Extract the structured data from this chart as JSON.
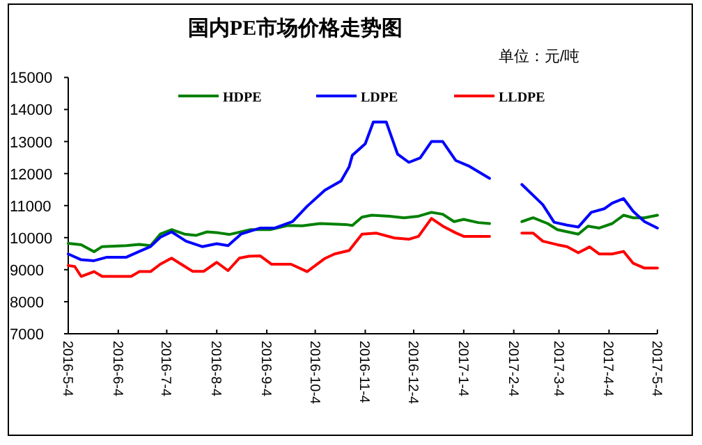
{
  "chart_data": {
    "type": "line",
    "title": "国内PE市场价格走势图",
    "subtitle": "单位：元/吨",
    "xlim": [
      "2016-05-04",
      "2017-05-04"
    ],
    "ylim": [
      7000,
      15000
    ],
    "xticks": [
      {
        "value": "2016-05-04",
        "label": "2016-5-4"
      },
      {
        "value": "2016-06-04",
        "label": "2016-6-4"
      },
      {
        "value": "2016-07-04",
        "label": "2016-7-4"
      },
      {
        "value": "2016-08-04",
        "label": "2016-8-4"
      },
      {
        "value": "2016-09-04",
        "label": "2016-9-4"
      },
      {
        "value": "2016-10-04",
        "label": "2016-10-4"
      },
      {
        "value": "2016-11-04",
        "label": "2016-11-4"
      },
      {
        "value": "2016-12-04",
        "label": "2016-12-4"
      },
      {
        "value": "2017-01-04",
        "label": "2017-1-4"
      },
      {
        "value": "2017-02-04",
        "label": "2017-2-4"
      },
      {
        "value": "2017-03-04",
        "label": "2017-3-4"
      },
      {
        "value": "2017-04-04",
        "label": "2017-4-4"
      },
      {
        "value": "2017-05-04",
        "label": "2017-5-4"
      }
    ],
    "yticks": [
      7000,
      8000,
      9000,
      10000,
      11000,
      12000,
      13000,
      14000,
      15000
    ],
    "legend": "top",
    "series": [
      {
        "name": "HDPE",
        "color": "#008000",
        "x": [
          "2016-05-04",
          "2016-05-12",
          "2016-05-20",
          "2016-05-25",
          "2016-06-09",
          "2016-06-17",
          "2016-06-24",
          "2016-06-30",
          "2016-07-07",
          "2016-07-15",
          "2016-07-22",
          "2016-07-29",
          "2016-08-05",
          "2016-08-12",
          "2016-08-25",
          "2016-09-06",
          "2016-09-17",
          "2016-09-26",
          "2016-10-07",
          "2016-10-23",
          "2016-10-27",
          "2016-11-02",
          "2016-11-08",
          "2016-11-19",
          "2016-11-28",
          "2016-12-07",
          "2016-12-15",
          "2016-12-22",
          "2016-12-29",
          "2017-01-04",
          "2017-01-13",
          "2017-01-20",
          "2017-01-30",
          "2017-02-09",
          "2017-02-16",
          "2017-02-25",
          "2017-03-03",
          "2017-03-16",
          "2017-03-22",
          "2017-03-29",
          "2017-04-06",
          "2017-04-13",
          "2017-04-19",
          "2017-04-26",
          "2017-05-04"
        ],
        "values": [
          9820,
          9780,
          9560,
          9720,
          9750,
          9790,
          9750,
          10110,
          10250,
          10110,
          10070,
          10180,
          10150,
          10100,
          10250,
          10250,
          10380,
          10370,
          10440,
          10410,
          10380,
          10640,
          10700,
          10670,
          10620,
          10670,
          10790,
          10730,
          10500,
          10570,
          10470,
          10440,
          null,
          10500,
          10620,
          10440,
          10250,
          10110,
          10360,
          10300,
          10440,
          10700,
          10620,
          10620,
          10700
        ]
      },
      {
        "name": "LDPE",
        "color": "#0000ff",
        "x": [
          "2016-05-04",
          "2016-05-12",
          "2016-05-20",
          "2016-05-28",
          "2016-06-09",
          "2016-06-17",
          "2016-06-24",
          "2016-06-30",
          "2016-07-07",
          "2016-07-16",
          "2016-07-26",
          "2016-08-04",
          "2016-08-11",
          "2016-08-19",
          "2016-08-31",
          "2016-09-09",
          "2016-09-20",
          "2016-09-29",
          "2016-10-10",
          "2016-10-20",
          "2016-10-25",
          "2016-10-27",
          "2016-11-04",
          "2016-11-09",
          "2016-11-17",
          "2016-11-24",
          "2016-12-01",
          "2016-12-08",
          "2016-12-15",
          "2016-12-22",
          "2016-12-30",
          "2017-01-07",
          "2017-01-20",
          "2017-01-30",
          "2017-02-09",
          "2017-02-22",
          "2017-03-01",
          "2017-03-09",
          "2017-03-16",
          "2017-03-24",
          "2017-04-01",
          "2017-04-06",
          "2017-04-13",
          "2017-04-19",
          "2017-04-26",
          "2017-05-04"
        ],
        "values": [
          9490,
          9310,
          9280,
          9390,
          9390,
          9570,
          9720,
          10010,
          10180,
          9890,
          9720,
          9810,
          9750,
          10110,
          10300,
          10300,
          10500,
          10980,
          11480,
          11770,
          12210,
          12570,
          12930,
          13610,
          13610,
          12610,
          12350,
          12490,
          13000,
          13000,
          12410,
          12240,
          11850,
          null,
          11660,
          11030,
          10480,
          10390,
          10330,
          10790,
          10900,
          11080,
          11220,
          10820,
          10500,
          10300
        ]
      },
      {
        "name": "LLDPE",
        "color": "#ff0000",
        "x": [
          "2016-05-04",
          "2016-05-08",
          "2016-05-12",
          "2016-05-20",
          "2016-05-25",
          "2016-06-12",
          "2016-06-17",
          "2016-06-24",
          "2016-06-30",
          "2016-07-07",
          "2016-07-13",
          "2016-07-20",
          "2016-07-27",
          "2016-08-04",
          "2016-08-11",
          "2016-08-18",
          "2016-08-24",
          "2016-08-31",
          "2016-09-07",
          "2016-09-19",
          "2016-09-29",
          "2016-10-10",
          "2016-10-16",
          "2016-10-25",
          "2016-11-02",
          "2016-11-11",
          "2016-11-22",
          "2016-12-01",
          "2016-12-07",
          "2016-12-15",
          "2016-12-22",
          "2016-12-30",
          "2017-01-04",
          "2017-01-20",
          "2017-01-30",
          "2017-02-09",
          "2017-02-16",
          "2017-02-22",
          "2017-03-03",
          "2017-03-09",
          "2017-03-16",
          "2017-03-23",
          "2017-03-29",
          "2017-04-06",
          "2017-04-13",
          "2017-04-19",
          "2017-04-26",
          "2017-05-04"
        ],
        "values": [
          9130,
          9100,
          8790,
          8940,
          8790,
          8790,
          8940,
          8940,
          9170,
          9360,
          9170,
          8950,
          8950,
          9230,
          8970,
          9360,
          9420,
          9430,
          9170,
          9170,
          8940,
          9350,
          9490,
          9600,
          10110,
          10140,
          9990,
          9950,
          10040,
          10600,
          10360,
          10150,
          10040,
          10040,
          null,
          10140,
          10140,
          9890,
          9780,
          9720,
          9530,
          9710,
          9490,
          9490,
          9570,
          9200,
          9050,
          9050
        ]
      }
    ]
  }
}
